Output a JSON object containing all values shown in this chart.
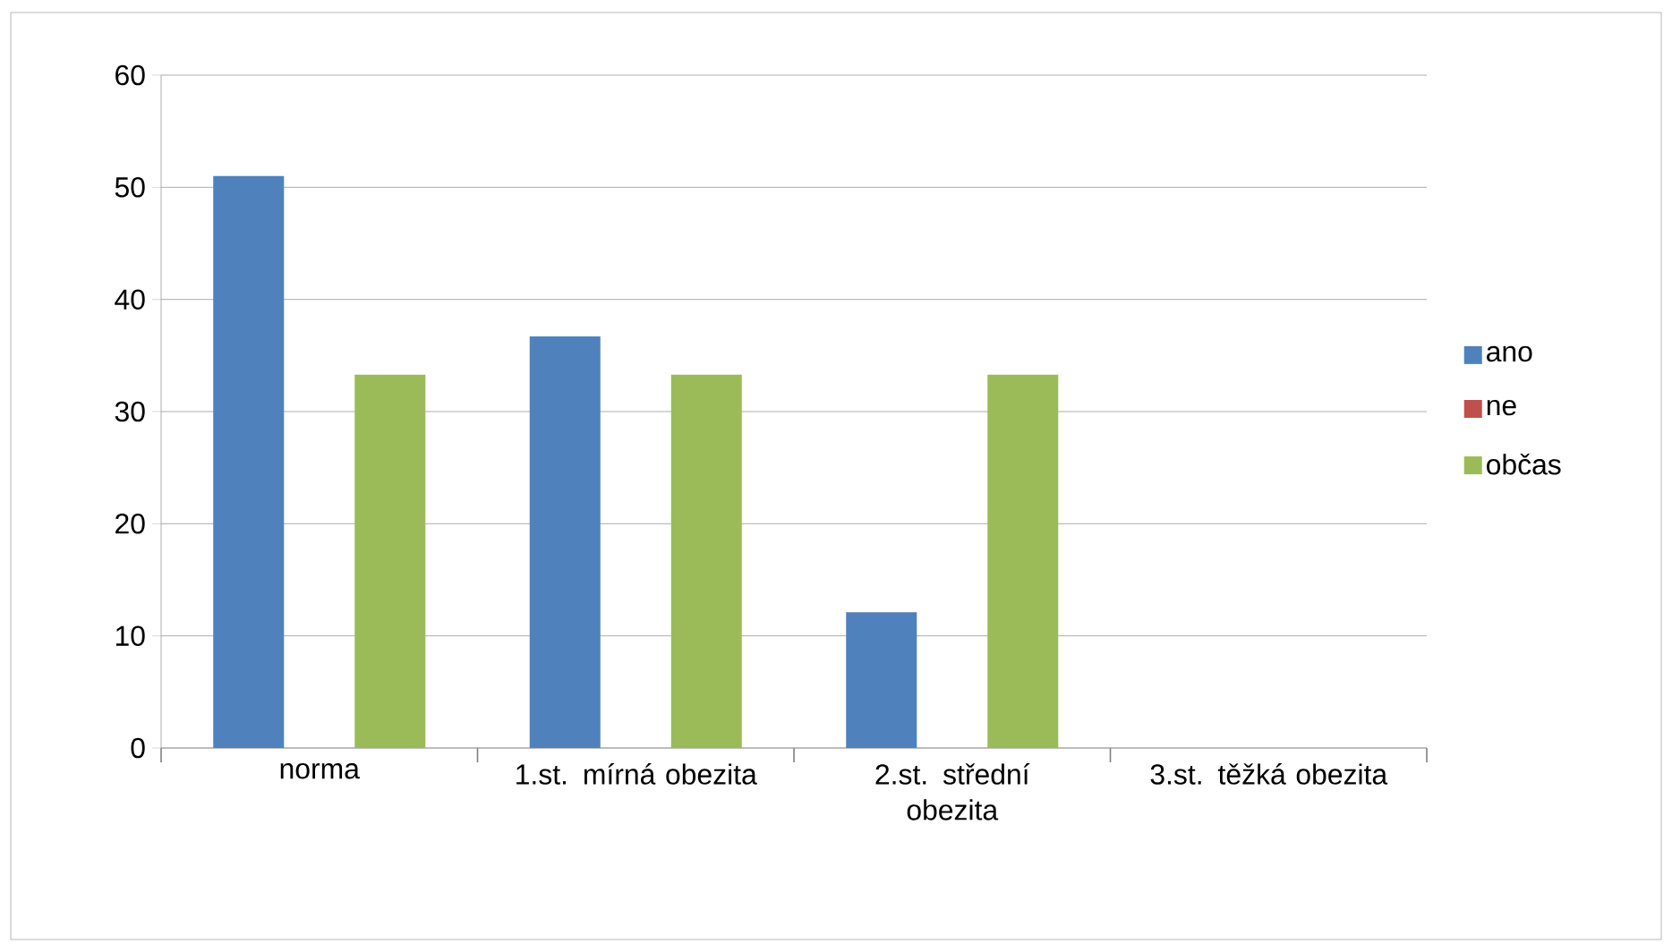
{
  "chart_data": {
    "type": "bar",
    "categories": [
      "norma",
      "1.st. mírná obezita",
      "2.st. střední obezita",
      "3.st. těžká obezita"
    ],
    "series": [
      {
        "name": "ano",
        "color": "#4f81bd",
        "values": [
          51,
          36.7,
          12.1,
          0
        ]
      },
      {
        "name": "ne",
        "color": "#c0504d",
        "values": [
          0,
          0,
          0,
          0
        ]
      },
      {
        "name": "občas",
        "color": "#9bbb59",
        "values": [
          33.3,
          33.3,
          33.3,
          0
        ]
      }
    ],
    "ylim": [
      0,
      60
    ],
    "yticks": [
      0,
      10,
      20,
      30,
      40,
      50,
      60
    ],
    "grid": "y",
    "legend": "right"
  }
}
